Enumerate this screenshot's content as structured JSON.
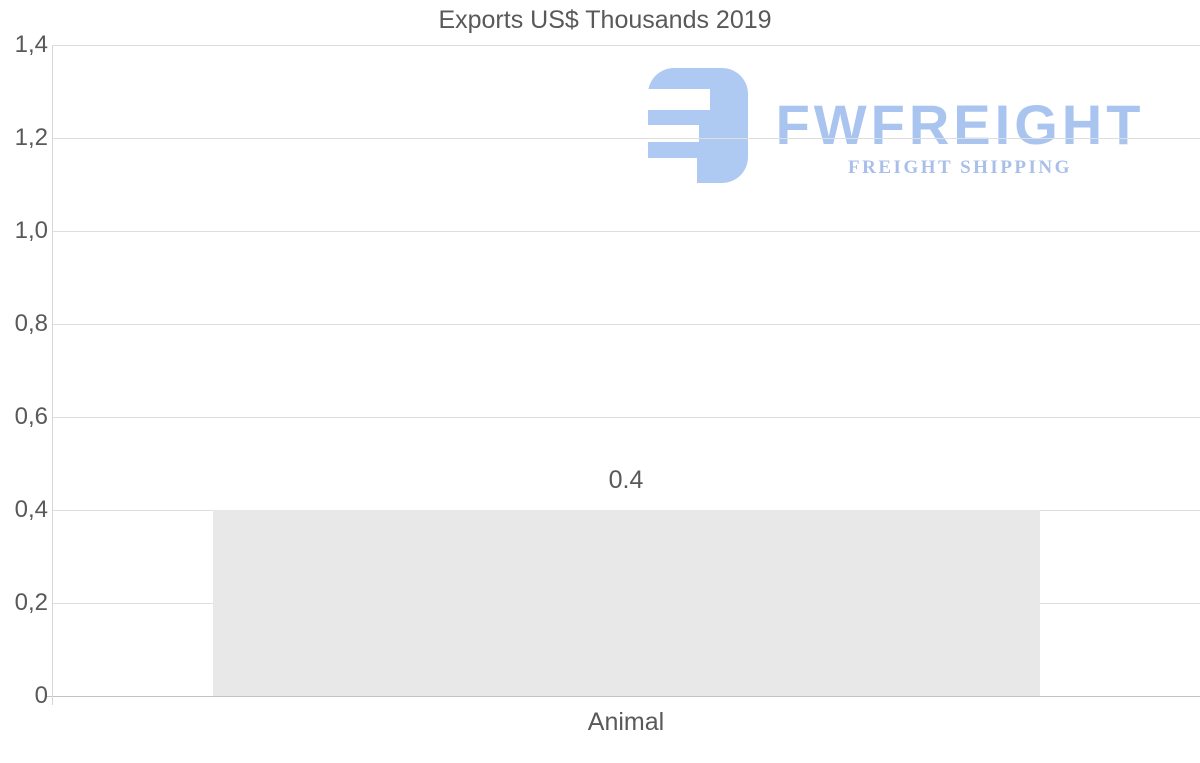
{
  "chart_data": {
    "type": "bar",
    "title": "Exports US$ Thousands 2019",
    "categories": [
      "Animal"
    ],
    "values": [
      0.4
    ],
    "value_labels": [
      "0.4"
    ],
    "xlabel": "",
    "ylabel": "",
    "ylim": [
      0,
      1.4
    ],
    "ytick_step": 0.2,
    "ytick_labels_bottom_up": [
      "0",
      "0,2",
      "0,4",
      "0,6",
      "0,8",
      "1,0",
      "1,2",
      "1,4"
    ],
    "decimal_separator_axis": ",",
    "grid": true,
    "legend": false,
    "bar_color": "#e8e8e8",
    "text_color": "#595959",
    "gridline_color": "#dedede",
    "zero_line_color": "#c3c3c3",
    "axis_line_color": "#d6d6d6"
  },
  "watermark": {
    "brand": "FWFREIGHT",
    "tagline": "FREIGHT SHIPPING",
    "icon": "fwfreight-logo-icon",
    "color_icon": "#aecaf2",
    "color_brand": "#a9c4ef",
    "color_tagline": "#a9bfe9"
  }
}
